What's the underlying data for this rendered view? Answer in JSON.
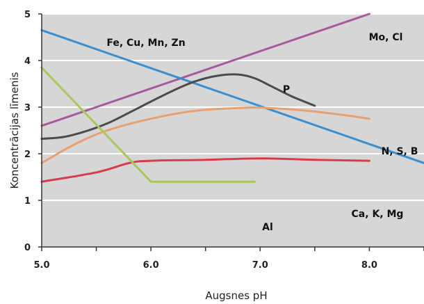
{
  "chart_data": {
    "type": "line",
    "title": "",
    "xlabel": "Augsnes pH",
    "ylabel": "Koncentrācijas līmenis",
    "xlim": [
      5.0,
      8.5
    ],
    "ylim": [
      0,
      5
    ],
    "x_ticks": [
      "5.0",
      "6.0",
      "7.0",
      "8.0"
    ],
    "y_ticks": [
      "0",
      "1",
      "2",
      "3",
      "4",
      "5"
    ],
    "grid": "horizontal",
    "background_color": "#d6d6d6",
    "series": [
      {
        "name": "Mo, Cl",
        "color": "#a75a9b",
        "x": [
          5.0,
          8.0
        ],
        "y": [
          2.6,
          5.0
        ]
      },
      {
        "name": "Fe, Cu, Mn, Zn",
        "color": "#3a8fd0",
        "x": [
          5.0,
          8.5
        ],
        "y": [
          4.65,
          1.8
        ]
      },
      {
        "name": "P",
        "color": "#4b4b4b",
        "x": [
          5.0,
          5.2,
          5.4,
          5.6,
          5.8,
          6.0,
          6.2,
          6.4,
          6.6,
          6.8,
          6.95,
          7.1,
          7.3,
          7.5
        ],
        "y": [
          2.32,
          2.36,
          2.48,
          2.65,
          2.88,
          3.12,
          3.35,
          3.55,
          3.67,
          3.7,
          3.62,
          3.45,
          3.22,
          3.03
        ]
      },
      {
        "name": "N, S, B",
        "color": "#e8a070",
        "x": [
          5.0,
          5.3,
          5.6,
          6.0,
          6.4,
          6.8,
          7.0,
          7.4,
          7.8,
          8.0
        ],
        "y": [
          1.8,
          2.2,
          2.5,
          2.75,
          2.92,
          2.98,
          2.99,
          2.93,
          2.82,
          2.75
        ]
      },
      {
        "name": "Ca, K, Mg",
        "color": "#d93a4a",
        "x": [
          5.0,
          5.5,
          5.8,
          6.0,
          6.5,
          7.0,
          7.5,
          8.0
        ],
        "y": [
          1.4,
          1.6,
          1.8,
          1.85,
          1.87,
          1.9,
          1.87,
          1.85
        ]
      },
      {
        "name": "Al",
        "color": "#a8c85a",
        "x": [
          5.0,
          6.0,
          6.95
        ],
        "y": [
          3.85,
          1.4,
          1.4
        ]
      }
    ]
  }
}
